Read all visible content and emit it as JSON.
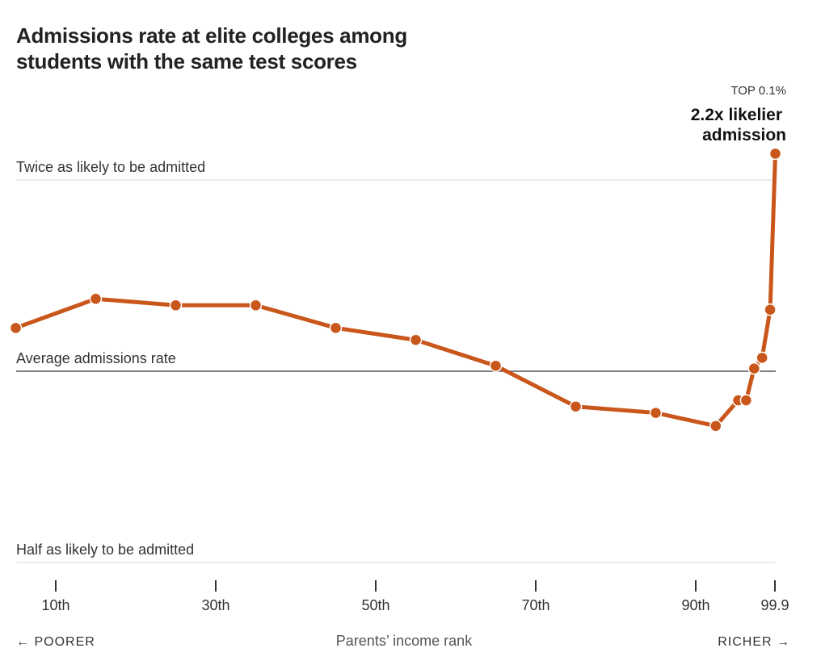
{
  "chart_data": {
    "type": "line",
    "title": "Admissions rate at elite colleges among students with the same test scores",
    "xlabel": "Parents’ income rank",
    "x_left_label": "← POORER",
    "x_right_label": "RICHER →",
    "x_ticks": [
      10,
      30,
      50,
      70,
      90,
      99.9
    ],
    "x_tick_labels": [
      "10th",
      "30th",
      "50th",
      "70th",
      "90th",
      "99.9"
    ],
    "y_scale": "log",
    "y_reference_lines": [
      {
        "value": 2,
        "label": "Twice as likely to be admitted"
      },
      {
        "value": 1,
        "label": "Average admissions rate"
      },
      {
        "value": 0.5,
        "label": "Half as likely to be admitted"
      }
    ],
    "x": [
      5,
      15,
      25,
      35,
      45,
      55,
      65,
      75,
      85,
      92.5,
      95.3,
      96.3,
      97.3,
      98.3,
      99.3,
      99.95
    ],
    "y": [
      1.17,
      1.3,
      1.27,
      1.27,
      1.17,
      1.12,
      1.02,
      0.88,
      0.86,
      0.82,
      0.9,
      0.9,
      1.01,
      1.05,
      1.25,
      2.2
    ],
    "annotation": {
      "kicker": "TOP 0.1%",
      "line1": "2.2x likelier",
      "line2": "admission"
    },
    "color": "#c9561a"
  }
}
